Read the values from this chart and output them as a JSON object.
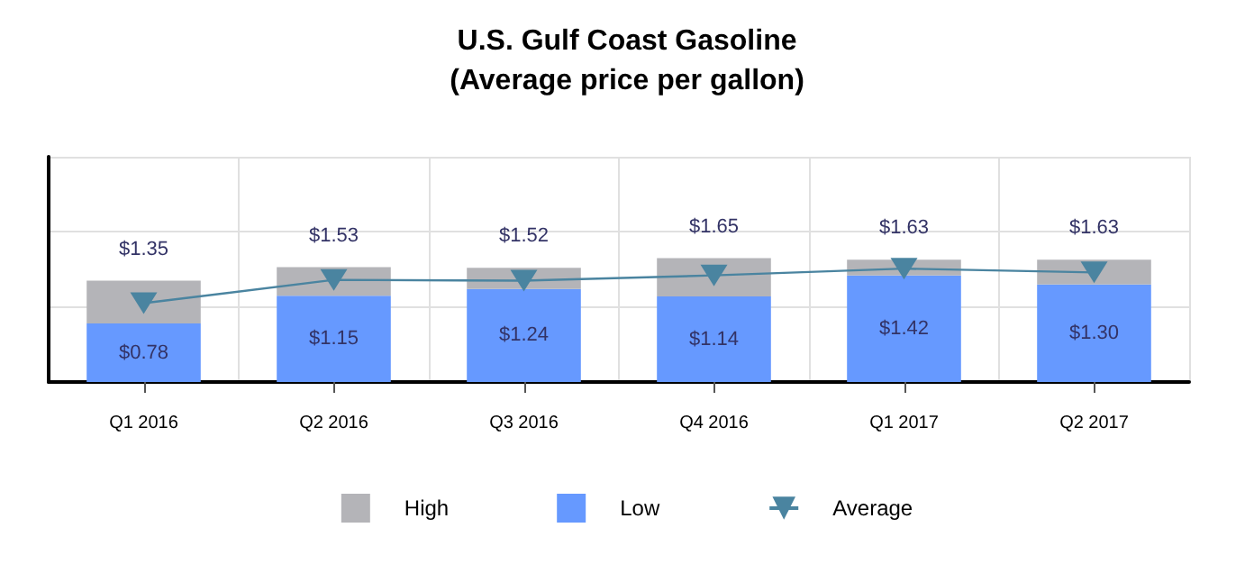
{
  "chart_data": {
    "type": "bar",
    "title": "U.S. Gulf Coast Gasoline",
    "subtitle": "(Average price per gallon)",
    "categories": [
      "Q1 2016",
      "Q2 2016",
      "Q3 2016",
      "Q4 2016",
      "Q1 2017",
      "Q2 2017"
    ],
    "stacked": true,
    "series": [
      {
        "name": "Low",
        "color": "#6699ff",
        "values": [
          0.78,
          1.15,
          1.24,
          1.14,
          1.42,
          1.3
        ],
        "value_labels": [
          "$0.78",
          "$1.15",
          "$1.24",
          "$1.14",
          "$1.42",
          "$1.30"
        ]
      },
      {
        "name": "High",
        "color": "#b4b4b8",
        "values": [
          0.57,
          0.38,
          0.28,
          0.51,
          0.21,
          0.33
        ]
      },
      {
        "name": "Average",
        "type": "line",
        "color": "#4a84a0",
        "values": [
          1.05,
          1.36,
          1.35,
          1.42,
          1.51,
          1.46
        ],
        "marker": "triangle",
        "line_style": "solid"
      }
    ],
    "totals": [
      "$1.35",
      "$1.53",
      "$1.52",
      "$1.65",
      "$1.63",
      "$1.63"
    ],
    "ylim": [
      0,
      3
    ],
    "yticks": [
      {
        "value": 0,
        "label": null
      },
      {
        "value": 1,
        "label": null
      },
      {
        "value": 2,
        "label": null
      },
      {
        "value": 3,
        "label": null
      }
    ],
    "tick_labels": "x",
    "grid": true,
    "legend": "bottom"
  }
}
